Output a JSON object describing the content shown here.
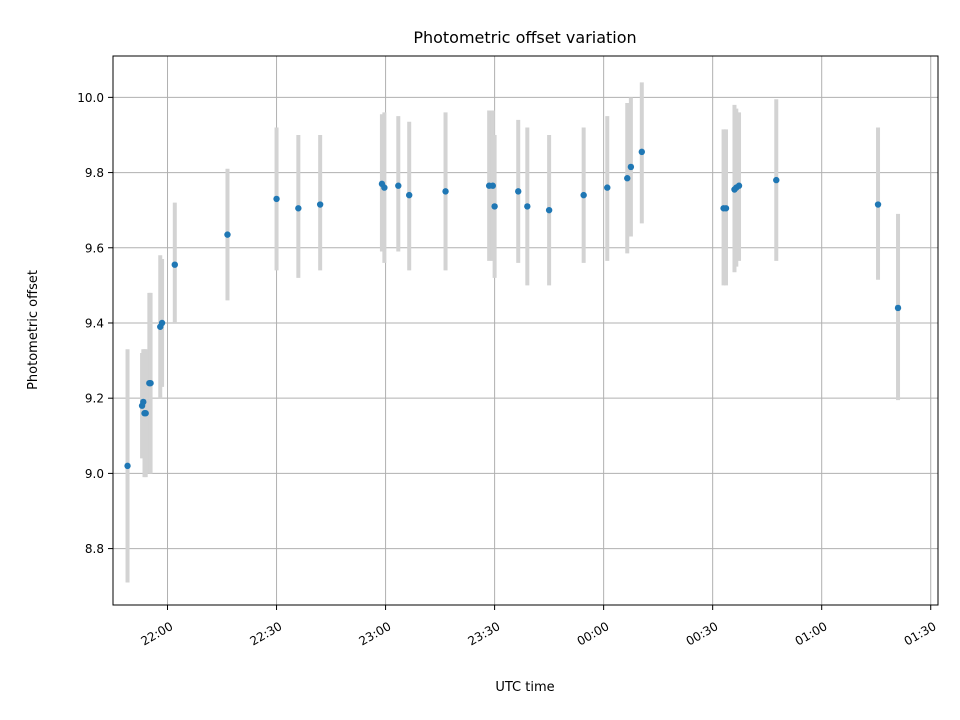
{
  "chart_data": {
    "type": "scatter",
    "title": "Photometric offset variation",
    "xlabel": "UTC time",
    "ylabel": "Photometric offset",
    "x_axis": {
      "kind": "time",
      "range": [
        "21:45:00",
        "01:32:00"
      ],
      "ticks": [
        "22:00",
        "22:30",
        "23:00",
        "23:30",
        "00:00",
        "00:30",
        "01:00",
        "01:30"
      ],
      "tick_times": [
        "22:00:00",
        "22:30:00",
        "23:00:00",
        "23:30:00",
        "00:00:00",
        "00:30:00",
        "01:00:00",
        "01:30:00"
      ]
    },
    "y_axis": {
      "range": [
        8.65,
        10.11
      ],
      "ticks": [
        8.8,
        9.0,
        9.2,
        9.4,
        9.6,
        9.8,
        10.0
      ],
      "tick_labels": [
        "8.8",
        "9.0",
        "9.2",
        "9.4",
        "9.6",
        "9.8",
        "10.0"
      ]
    },
    "grid": true,
    "marker_color": "#1f77b4",
    "errorbar_color": "#d3d3d3",
    "points": [
      {
        "t": "21:49:00",
        "y": 9.02,
        "lo": 8.71,
        "hi": 9.33
      },
      {
        "t": "21:53:00",
        "y": 9.18,
        "lo": 9.04,
        "hi": 9.32
      },
      {
        "t": "21:53:20",
        "y": 9.19,
        "lo": 9.05,
        "hi": 9.33
      },
      {
        "t": "21:53:40",
        "y": 9.16,
        "lo": 8.99,
        "hi": 9.33
      },
      {
        "t": "21:54:00",
        "y": 9.16,
        "lo": 8.99,
        "hi": 9.33
      },
      {
        "t": "21:55:00",
        "y": 9.24,
        "lo": 9.0,
        "hi": 9.48
      },
      {
        "t": "21:55:20",
        "y": 9.24,
        "lo": 9.0,
        "hi": 9.48
      },
      {
        "t": "21:58:00",
        "y": 9.39,
        "lo": 9.2,
        "hi": 9.58
      },
      {
        "t": "21:58:30",
        "y": 9.4,
        "lo": 9.23,
        "hi": 9.57
      },
      {
        "t": "22:02:00",
        "y": 9.555,
        "lo": 9.4,
        "hi": 9.72
      },
      {
        "t": "22:16:30",
        "y": 9.635,
        "lo": 9.46,
        "hi": 9.81
      },
      {
        "t": "22:30:00",
        "y": 9.73,
        "lo": 9.54,
        "hi": 9.92
      },
      {
        "t": "22:36:00",
        "y": 9.705,
        "lo": 9.52,
        "hi": 9.9
      },
      {
        "t": "22:42:00",
        "y": 9.715,
        "lo": 9.54,
        "hi": 9.9
      },
      {
        "t": "22:59:00",
        "y": 9.77,
        "lo": 9.59,
        "hi": 9.955
      },
      {
        "t": "22:59:40",
        "y": 9.76,
        "lo": 9.56,
        "hi": 9.96
      },
      {
        "t": "23:03:30",
        "y": 9.765,
        "lo": 9.59,
        "hi": 9.95
      },
      {
        "t": "23:06:30",
        "y": 9.74,
        "lo": 9.54,
        "hi": 9.935
      },
      {
        "t": "23:16:30",
        "y": 9.75,
        "lo": 9.54,
        "hi": 9.96
      },
      {
        "t": "23:28:30",
        "y": 9.765,
        "lo": 9.565,
        "hi": 9.965
      },
      {
        "t": "23:29:30",
        "y": 9.765,
        "lo": 9.565,
        "hi": 9.965
      },
      {
        "t": "23:30:00",
        "y": 9.71,
        "lo": 9.52,
        "hi": 9.9
      },
      {
        "t": "23:36:30",
        "y": 9.75,
        "lo": 9.56,
        "hi": 9.94
      },
      {
        "t": "23:39:00",
        "y": 9.71,
        "lo": 9.5,
        "hi": 9.92
      },
      {
        "t": "23:45:00",
        "y": 9.7,
        "lo": 9.5,
        "hi": 9.9
      },
      {
        "t": "23:54:30",
        "y": 9.74,
        "lo": 9.56,
        "hi": 9.92
      },
      {
        "t": "00:01:00",
        "y": 9.76,
        "lo": 9.565,
        "hi": 9.95
      },
      {
        "t": "00:06:30",
        "y": 9.785,
        "lo": 9.585,
        "hi": 9.985
      },
      {
        "t": "00:07:30",
        "y": 9.815,
        "lo": 9.63,
        "hi": 10.0
      },
      {
        "t": "00:10:30",
        "y": 9.855,
        "lo": 9.665,
        "hi": 10.04
      },
      {
        "t": "00:33:00",
        "y": 9.705,
        "lo": 9.5,
        "hi": 9.915
      },
      {
        "t": "00:33:40",
        "y": 9.705,
        "lo": 9.5,
        "hi": 9.915
      },
      {
        "t": "00:36:00",
        "y": 9.755,
        "lo": 9.535,
        "hi": 9.98
      },
      {
        "t": "00:36:30",
        "y": 9.76,
        "lo": 9.55,
        "hi": 9.97
      },
      {
        "t": "00:37:15",
        "y": 9.765,
        "lo": 9.565,
        "hi": 9.96
      },
      {
        "t": "00:47:30",
        "y": 9.78,
        "lo": 9.565,
        "hi": 9.995
      },
      {
        "t": "01:15:30",
        "y": 9.715,
        "lo": 9.515,
        "hi": 9.92
      },
      {
        "t": "01:21:00",
        "y": 9.44,
        "lo": 9.195,
        "hi": 9.69
      }
    ]
  }
}
